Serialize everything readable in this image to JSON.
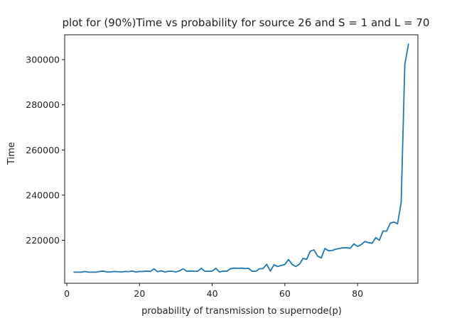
{
  "chart_data": {
    "type": "line",
    "title": "plot for (90%)Time vs probability for source 26 and S = 1 and L = 70",
    "xlabel": "probability of transmission to supernode(p)",
    "ylabel": "Time",
    "xlim": [
      -0.6,
      96.6
    ],
    "ylim": [
      201000,
      311000
    ],
    "xticks": [
      0,
      20,
      40,
      60,
      80
    ],
    "yticks": [
      220000,
      240000,
      260000,
      280000,
      300000
    ],
    "grid": false,
    "legend": "none",
    "series": [
      {
        "color": "#1f77b4",
        "x": [
          2,
          3,
          4,
          5,
          6,
          7,
          8,
          9,
          10,
          11,
          12,
          13,
          14,
          15,
          16,
          17,
          18,
          19,
          20,
          21,
          22,
          23,
          24,
          25,
          26,
          27,
          28,
          29,
          30,
          31,
          32,
          33,
          34,
          35,
          36,
          37,
          38,
          39,
          40,
          41,
          42,
          43,
          44,
          45,
          46,
          47,
          48,
          49,
          50,
          51,
          52,
          53,
          54,
          55,
          56,
          57,
          58,
          59,
          60,
          61,
          62,
          63,
          64,
          65,
          66,
          67,
          68,
          69,
          70,
          71,
          72,
          73,
          74,
          75,
          76,
          77,
          78,
          79,
          80,
          81,
          82,
          83,
          84,
          85,
          86,
          87,
          88,
          89,
          90,
          91,
          92,
          93,
          94
        ],
        "values": [
          205900,
          205900,
          205900,
          206200,
          205900,
          205900,
          205900,
          206200,
          206400,
          206000,
          206000,
          206200,
          206100,
          206000,
          206200,
          206100,
          206400,
          206000,
          206200,
          206200,
          206400,
          206200,
          207400,
          206100,
          206500,
          206000,
          206300,
          206300,
          206000,
          206500,
          207400,
          206300,
          206400,
          206300,
          206300,
          207600,
          206300,
          206300,
          206400,
          207600,
          206000,
          206400,
          206300,
          207400,
          207700,
          207600,
          207700,
          207500,
          207600,
          206300,
          206300,
          207400,
          207500,
          209400,
          206400,
          209200,
          208400,
          208900,
          209300,
          211500,
          209300,
          208400,
          209400,
          212000,
          211600,
          215200,
          215800,
          213000,
          212200,
          216400,
          215400,
          215500,
          216100,
          216400,
          216700,
          216700,
          216500,
          218400,
          217300,
          218100,
          219500,
          219000,
          218700,
          221200,
          220000,
          224100,
          224100,
          227600,
          228100,
          227300,
          236800,
          297800,
          306800
        ]
      }
    ]
  }
}
